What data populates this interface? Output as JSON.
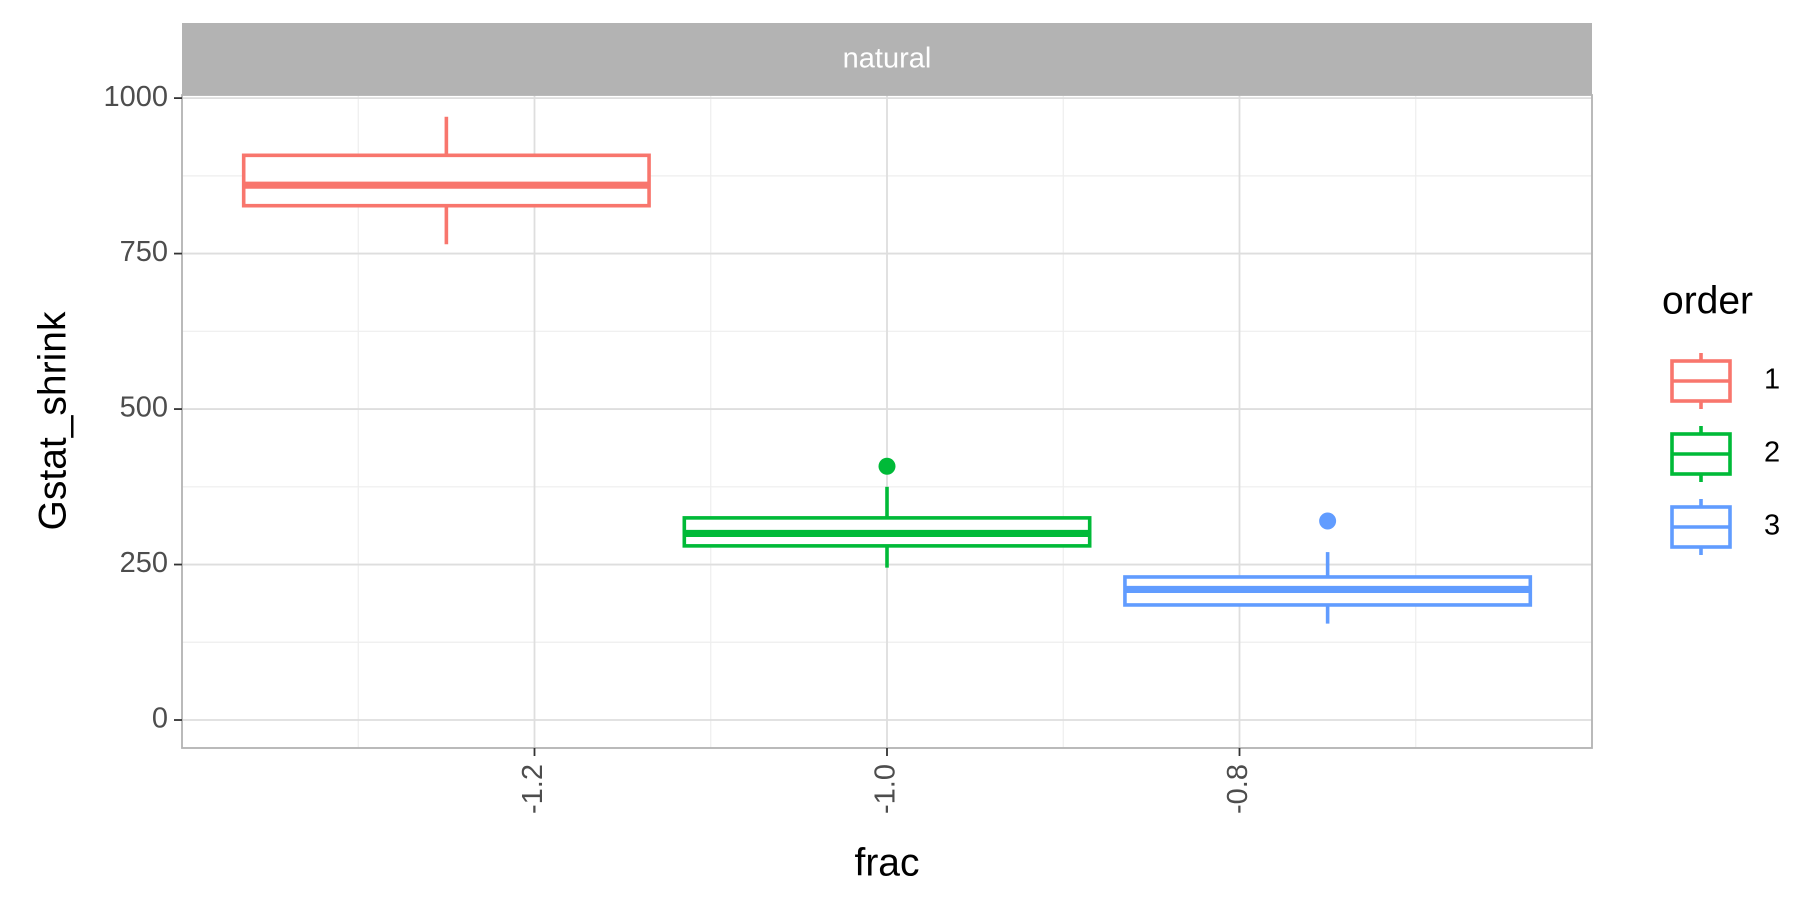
{
  "chart_data": {
    "type": "boxplot",
    "facet": "natural",
    "xlabel": "frac",
    "ylabel": "Gstat_shrink",
    "xlim": [
      -1.4,
      -0.6
    ],
    "ylim": [
      -45,
      1005
    ],
    "x_ticks": [
      {
        "value": -1.2,
        "label": "-1.2"
      },
      {
        "value": -1.0,
        "label": "-1.0"
      },
      {
        "value": -0.8,
        "label": "-0.8"
      }
    ],
    "y_ticks": [
      {
        "value": 0,
        "label": "0"
      },
      {
        "value": 250,
        "label": "250"
      },
      {
        "value": 500,
        "label": "500"
      },
      {
        "value": 750,
        "label": "750"
      },
      {
        "value": 1000,
        "label": "1000"
      }
    ],
    "grid": true,
    "legend": {
      "title": "order",
      "position": "right",
      "entries": [
        "1",
        "2",
        "3"
      ]
    },
    "series": [
      {
        "name": "1",
        "color": "#F8766D",
        "x": -1.25,
        "x_range": [
          -1.365,
          -1.135
        ],
        "whisker_low": 765,
        "q1": 827,
        "median": 860,
        "q3": 908,
        "whisker_high": 970,
        "outliers": []
      },
      {
        "name": "2",
        "color": "#00BA38",
        "x": -1.0,
        "x_range": [
          -1.115,
          -0.885
        ],
        "whisker_low": 245,
        "q1": 280,
        "median": 300,
        "q3": 325,
        "whisker_high": 375,
        "outliers": [
          408
        ]
      },
      {
        "name": "3",
        "color": "#619CFF",
        "x": -0.75,
        "x_range": [
          -0.865,
          -0.635
        ],
        "whisker_low": 155,
        "q1": 185,
        "median": 210,
        "q3": 230,
        "whisker_high": 270,
        "outliers": [
          320
        ]
      }
    ]
  }
}
